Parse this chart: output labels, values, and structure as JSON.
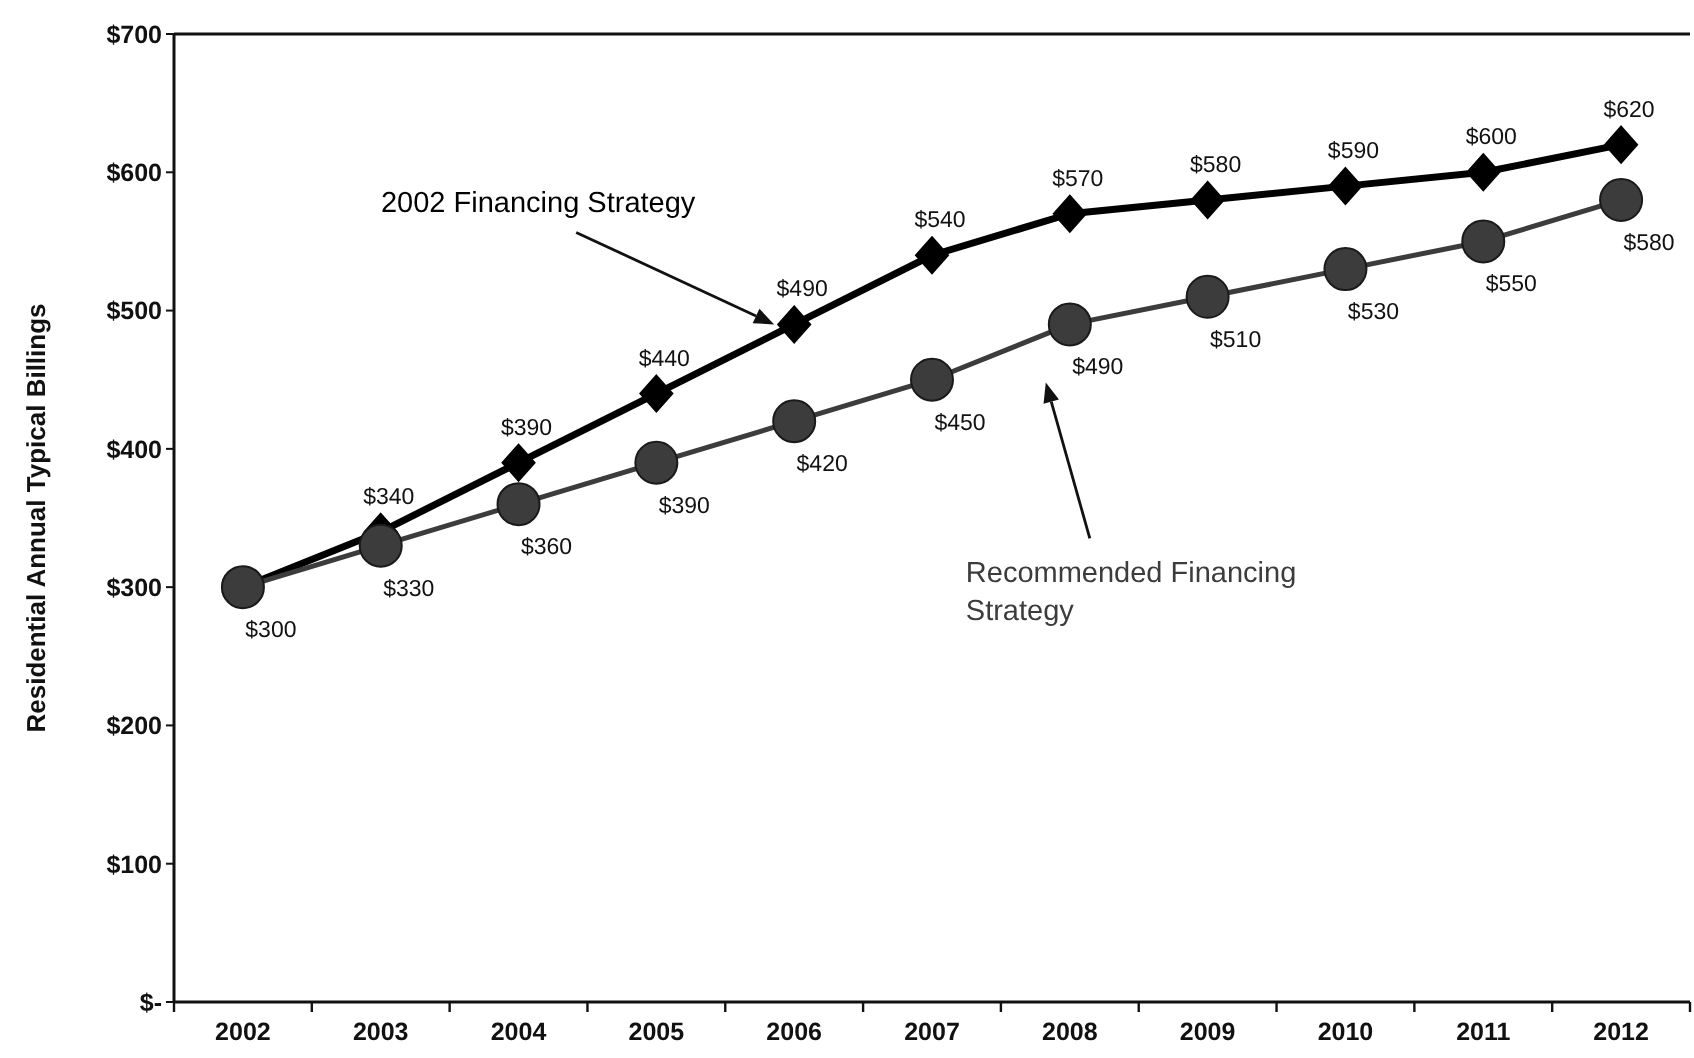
{
  "chart_data": {
    "type": "line",
    "ylabel": "Residential Annual Typical Billings",
    "categories": [
      "2002",
      "2003",
      "2004",
      "2005",
      "2006",
      "2007",
      "2008",
      "2009",
      "2010",
      "2011",
      "2012"
    ],
    "ylim": [
      0,
      700
    ],
    "yticks": [
      {
        "value": 0,
        "label": "$-"
      },
      {
        "value": 100,
        "label": "$100"
      },
      {
        "value": 200,
        "label": "$200"
      },
      {
        "value": 300,
        "label": "$300"
      },
      {
        "value": 400,
        "label": "$400"
      },
      {
        "value": 500,
        "label": "$500"
      },
      {
        "value": 600,
        "label": "$600"
      },
      {
        "value": 700,
        "label": "$700"
      }
    ],
    "series": [
      {
        "name": "2002 Financing Strategy",
        "color": "#000000",
        "marker": "diamond",
        "values": [
          300,
          340,
          390,
          440,
          490,
          540,
          570,
          580,
          590,
          600,
          620
        ],
        "value_labels": [
          null,
          "$340",
          "$390",
          "$440",
          "$490",
          "$540",
          "$570",
          "$580",
          "$590",
          "$600",
          "$620"
        ]
      },
      {
        "name": "Recommended Financing Strategy",
        "color": "#3c3c3c",
        "marker": "circle",
        "values": [
          300,
          330,
          360,
          390,
          420,
          450,
          490,
          510,
          530,
          550,
          580
        ],
        "value_labels": [
          "$300",
          "$330",
          "$360",
          "$390",
          "$420",
          "$450",
          "$490",
          "$510",
          "$530",
          "$550",
          "$580"
        ]
      }
    ]
  }
}
